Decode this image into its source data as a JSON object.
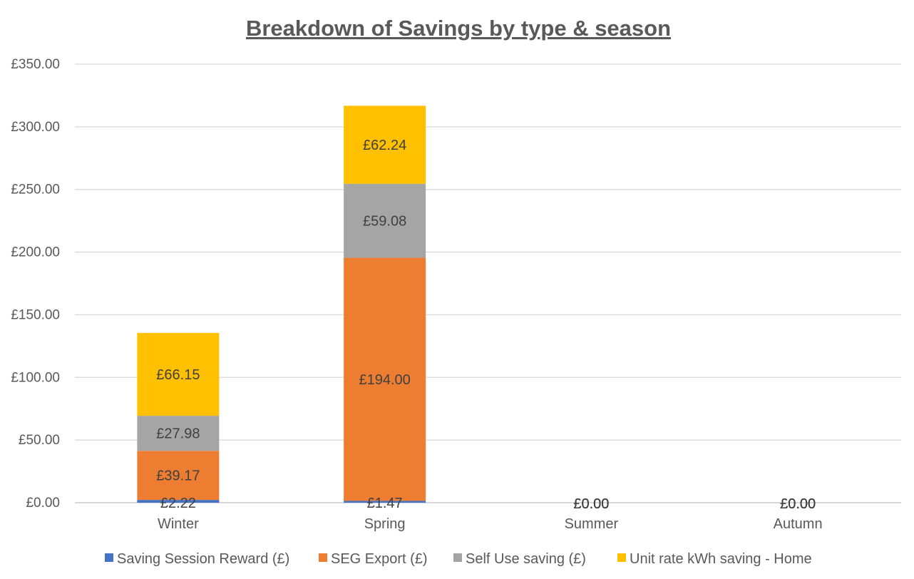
{
  "chart_data": {
    "type": "bar",
    "stacked": true,
    "title": "Breakdown of Savings by type & season",
    "categories": [
      "Winter",
      "Spring",
      "Summer",
      "Autumn"
    ],
    "ylim": [
      0,
      350
    ],
    "yticks": [
      "£0.00",
      "£50.00",
      "£100.00",
      "£150.00",
      "£200.00",
      "£250.00",
      "£300.00",
      "£350.00"
    ],
    "ytick_values": [
      0,
      50,
      100,
      150,
      200,
      250,
      300,
      350
    ],
    "grid": true,
    "legend_position": "bottom",
    "series": [
      {
        "name": "Saving Session Reward (£)",
        "color": "#4472C4",
        "values": [
          2.22,
          1.47,
          0,
          0
        ],
        "labels": [
          "£2.22",
          "£1.47",
          "£0.00",
          "£0.00"
        ]
      },
      {
        "name": "SEG Export (£)",
        "color": "#ED7D31",
        "values": [
          39.17,
          194.0,
          0,
          0
        ],
        "labels": [
          "£39.17",
          "£194.00",
          "£0.00",
          "£0.00"
        ]
      },
      {
        "name": "Self Use saving (£)",
        "color": "#A5A5A5",
        "values": [
          27.98,
          59.08,
          0,
          0
        ],
        "labels": [
          "£27.98",
          "£59.08",
          "£0.00",
          "£0.00"
        ]
      },
      {
        "name": "Unit rate kWh saving - Home",
        "color": "#FFC000",
        "values": [
          66.15,
          62.24,
          0,
          0
        ],
        "labels": [
          "£66.15",
          "£62.24",
          "£0.00",
          "£0.00"
        ]
      }
    ]
  }
}
